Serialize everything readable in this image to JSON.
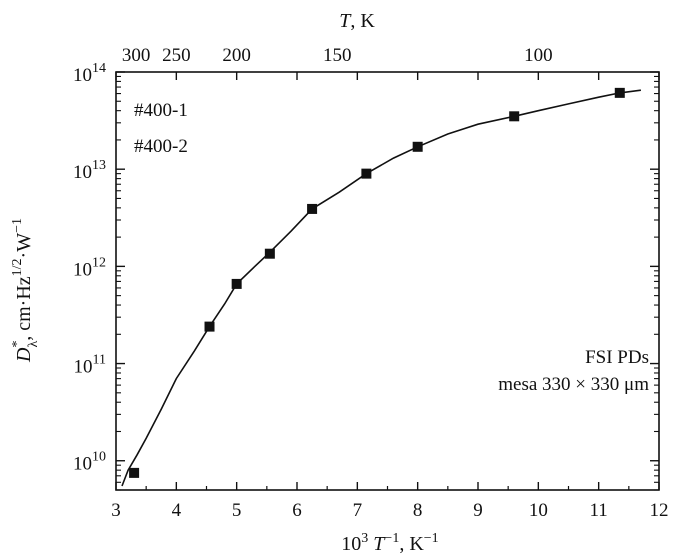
{
  "chart_data": {
    "type": "scatter",
    "title": "",
    "xlabel": {
      "prefix": "10",
      "prefix_sup": "3",
      "var": "T",
      "var_sup": "−1",
      "unit": ", K",
      "unit_sup": "−1"
    },
    "ylabel": {
      "var": "D",
      "var_sup": "*",
      "var_sub": "λ",
      "unit_a": ", cm·Hz",
      "unit_a_sup": "1/2",
      "unit_b": "·W",
      "unit_b_sup": "−1"
    },
    "top_axis_label": {
      "var": "T",
      "unit": ", K"
    },
    "xlim": [
      3,
      12
    ],
    "ylim": [
      5000000000.0,
      100000000000000.0
    ],
    "yscale": "log",
    "x_ticks": [
      3,
      4,
      5,
      6,
      7,
      8,
      9,
      10,
      11,
      12
    ],
    "y_ticks": [
      {
        "value": 10000000000.0,
        "base": "10",
        "exp": "10"
      },
      {
        "value": 100000000000.0,
        "base": "10",
        "exp": "11"
      },
      {
        "value": 1000000000000.0,
        "base": "10",
        "exp": "12"
      },
      {
        "value": 10000000000000.0,
        "base": "10",
        "exp": "13"
      },
      {
        "value": 100000000000000.0,
        "base": "10",
        "exp": "14"
      }
    ],
    "top_ticks": [
      {
        "label": "300",
        "x": 3.333
      },
      {
        "label": "250",
        "x": 4.0
      },
      {
        "label": "200",
        "x": 5.0
      },
      {
        "label": "150",
        "x": 6.667
      },
      {
        "label": "100",
        "x": 10.0
      }
    ],
    "series": [
      {
        "name": "#400-1",
        "style": "line",
        "x": [
          3.1,
          3.2,
          3.35,
          3.5,
          3.75,
          4.0,
          4.3,
          4.55,
          4.8,
          5.0,
          5.3,
          5.55,
          5.9,
          6.25,
          6.7,
          7.15,
          7.6,
          8.0,
          8.5,
          9.0,
          9.6,
          10.0,
          10.5,
          11.0,
          11.35,
          11.7
        ],
        "y": [
          5500000000.0,
          8000000000.0,
          11500000000.0,
          17000000000.0,
          34000000000.0,
          70000000000.0,
          135000000000.0,
          240000000000.0,
          410000000000.0,
          660000000000.0,
          1000000000000.0,
          1400000000000.0,
          2300000000000.0,
          3900000000000.0,
          5800000000000.0,
          9000000000000.0,
          13000000000000.0,
          17000000000000.0,
          23000000000000.0,
          29000000000000.0,
          35000000000000.0,
          40000000000000.0,
          47000000000000.0,
          55000000000000.0,
          61000000000000.0,
          65000000000000.0
        ]
      },
      {
        "name": "#400-2",
        "style": "square-marker",
        "x": [
          3.3,
          4.55,
          5.0,
          5.55,
          6.25,
          7.15,
          8.0,
          9.6,
          11.35
        ],
        "y": [
          7500000000.0,
          240000000000.0,
          660000000000.0,
          1350000000000.0,
          3900000000000.0,
          9000000000000.0,
          17000000000000.0,
          35000000000000.0,
          61000000000000.0
        ]
      }
    ],
    "legend": {
      "placement": "top-left",
      "entries": [
        "#400-1",
        "#400-2"
      ]
    },
    "annotations": [
      "FSI PDs",
      "mesa 330 × 330 μm"
    ],
    "grid": false,
    "colors": {
      "line": "#111111",
      "marker": "#111111",
      "axes": "#111111"
    }
  }
}
